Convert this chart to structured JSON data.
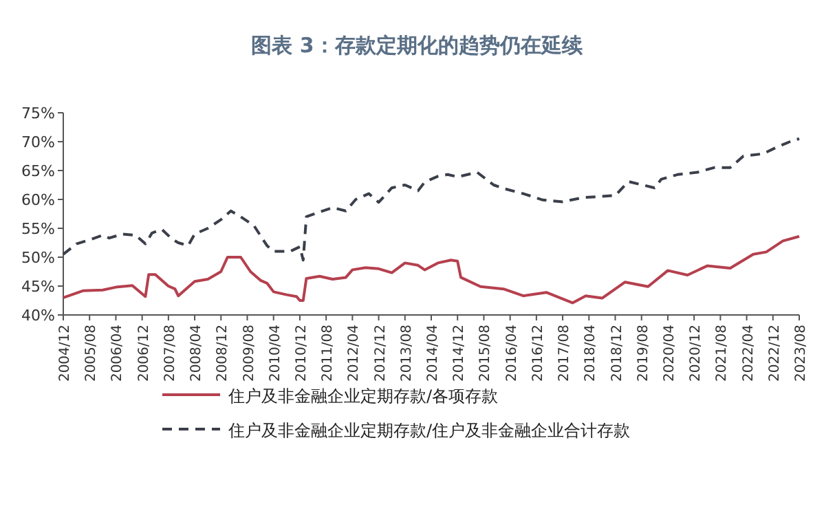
{
  "chart_data": {
    "type": "line",
    "title": "图表 3：存款定期化的趋势仍在延续",
    "legend": "bottom",
    "marker": "none",
    "grid": false,
    "xlim": [
      "2004-12",
      "2023-08"
    ],
    "xticks": [
      {
        "value": "2004-12",
        "label": "2004/12"
      },
      {
        "value": "2005-08",
        "label": "2005/08"
      },
      {
        "value": "2006-04",
        "label": "2006/04"
      },
      {
        "value": "2006-12",
        "label": "2006/12"
      },
      {
        "value": "2007-08",
        "label": "2007/08"
      },
      {
        "value": "2008-04",
        "label": "2008/04"
      },
      {
        "value": "2008-12",
        "label": "2008/12"
      },
      {
        "value": "2009-08",
        "label": "2009/08"
      },
      {
        "value": "2010-04",
        "label": "2010/04"
      },
      {
        "value": "2010-12",
        "label": "2010/12"
      },
      {
        "value": "2011-08",
        "label": "2011/08"
      },
      {
        "value": "2012-04",
        "label": "2012/04"
      },
      {
        "value": "2012-12",
        "label": "2012/12"
      },
      {
        "value": "2013-08",
        "label": "2013/08"
      },
      {
        "value": "2014-04",
        "label": "2014/04"
      },
      {
        "value": "2014-12",
        "label": "2014/12"
      },
      {
        "value": "2015-08",
        "label": "2015/08"
      },
      {
        "value": "2016-04",
        "label": "2016/04"
      },
      {
        "value": "2016-12",
        "label": "2016/12"
      },
      {
        "value": "2017-08",
        "label": "2017/08"
      },
      {
        "value": "2018-04",
        "label": "2018/04"
      },
      {
        "value": "2018-12",
        "label": "2018/12"
      },
      {
        "value": "2019-08",
        "label": "2019/08"
      },
      {
        "value": "2020-04",
        "label": "2020/04"
      },
      {
        "value": "2020-12",
        "label": "2020/12"
      },
      {
        "value": "2021-08",
        "label": "2021/08"
      },
      {
        "value": "2022-04",
        "label": "2022/04"
      },
      {
        "value": "2022-12",
        "label": "2022/12"
      },
      {
        "value": "2023-08",
        "label": "2023/08"
      }
    ],
    "ylim": [
      40,
      75
    ],
    "yticks": [
      {
        "value": 40,
        "label": "40%"
      },
      {
        "value": 45,
        "label": "45%"
      },
      {
        "value": 50,
        "label": "50%"
      },
      {
        "value": 55,
        "label": "55%"
      },
      {
        "value": 60,
        "label": "60%"
      },
      {
        "value": 65,
        "label": "65%"
      },
      {
        "value": 70,
        "label": "70%"
      },
      {
        "value": 75,
        "label": "75%"
      }
    ],
    "series": [
      {
        "name": "住户及非金融企业定期存款/各项存款",
        "color": "#b5404e",
        "line_style": "solid",
        "x": [
          "2004-12",
          "2005-06",
          "2005-12",
          "2006-04",
          "2006-09",
          "2007-01",
          "2007-02",
          "2007-04",
          "2007-08",
          "2007-10",
          "2007-11",
          "2008-04",
          "2008-08",
          "2008-12",
          "2009-02",
          "2009-06",
          "2009-09",
          "2009-12",
          "2010-02",
          "2010-04",
          "2010-08",
          "2010-11",
          "2010-12",
          "2011-01",
          "2011-02",
          "2011-06",
          "2011-10",
          "2012-02",
          "2012-04",
          "2012-08",
          "2012-12",
          "2013-04",
          "2013-08",
          "2013-12",
          "2014-02",
          "2014-06",
          "2014-10",
          "2014-12",
          "2015-01",
          "2015-07",
          "2016-02",
          "2016-08",
          "2017-03",
          "2017-11",
          "2018-03",
          "2018-08",
          "2019-03",
          "2019-10",
          "2020-04",
          "2020-10",
          "2021-04",
          "2021-11",
          "2022-06",
          "2022-10",
          "2023-03",
          "2023-08"
        ],
        "values": [
          43,
          44.2,
          44.3,
          44.8,
          45.1,
          43.2,
          47,
          47,
          45,
          44.5,
          43.3,
          45.8,
          46.2,
          47.5,
          50,
          50,
          47.5,
          46,
          45.5,
          44,
          43.5,
          43.2,
          42.5,
          42.5,
          46.3,
          46.7,
          46.2,
          46.5,
          47.8,
          48.2,
          48,
          47.3,
          49,
          48.6,
          47.8,
          49,
          49.5,
          49.3,
          46.5,
          44.9,
          44.5,
          43.3,
          43.9,
          42.1,
          43.3,
          42.9,
          45.7,
          44.9,
          47.7,
          46.9,
          48.5,
          48.1,
          50.5,
          50.9,
          52.8,
          53.6
        ]
      },
      {
        "name": "住户及非金融企业定期存款/住户及非金融企业合计存款",
        "color": "#3a3f4a",
        "line_style": "dashed",
        "x": [
          "2004-12",
          "2005-04",
          "2005-08",
          "2005-12",
          "2006-02",
          "2006-06",
          "2006-10",
          "2007-01",
          "2007-03",
          "2007-06",
          "2007-09",
          "2007-11",
          "2008-02",
          "2008-04",
          "2008-08",
          "2008-12",
          "2009-03",
          "2009-06",
          "2009-10",
          "2010-02",
          "2010-04",
          "2010-09",
          "2010-12",
          "2011-01",
          "2011-02",
          "2011-06",
          "2011-10",
          "2012-02",
          "2012-05",
          "2012-09",
          "2012-12",
          "2013-04",
          "2013-08",
          "2013-12",
          "2014-02",
          "2014-06",
          "2014-09",
          "2014-12",
          "2015-06",
          "2015-11",
          "2016-02",
          "2016-08",
          "2017-02",
          "2017-08",
          "2018-02",
          "2018-12",
          "2019-04",
          "2019-12",
          "2020-02",
          "2020-07",
          "2021-01",
          "2021-06",
          "2021-11",
          "2022-03",
          "2022-09",
          "2023-01",
          "2023-06",
          "2023-08"
        ],
        "values": [
          50.5,
          52.3,
          53,
          53.8,
          53.3,
          54,
          53.8,
          52.3,
          54.2,
          54.8,
          53.2,
          52.5,
          52,
          54,
          55,
          56.5,
          58,
          57,
          55.5,
          52,
          51,
          51,
          51.8,
          49.5,
          57,
          57.8,
          58.6,
          58,
          60,
          61,
          59.5,
          62,
          62.5,
          61.5,
          63,
          64,
          64.3,
          63.9,
          64.7,
          62.5,
          61.9,
          61,
          59.9,
          59.6,
          60.3,
          60.7,
          63.1,
          62,
          63.5,
          64.3,
          64.7,
          65.5,
          65.5,
          67.5,
          67.9,
          69,
          70.2,
          70.5
        ]
      }
    ]
  }
}
